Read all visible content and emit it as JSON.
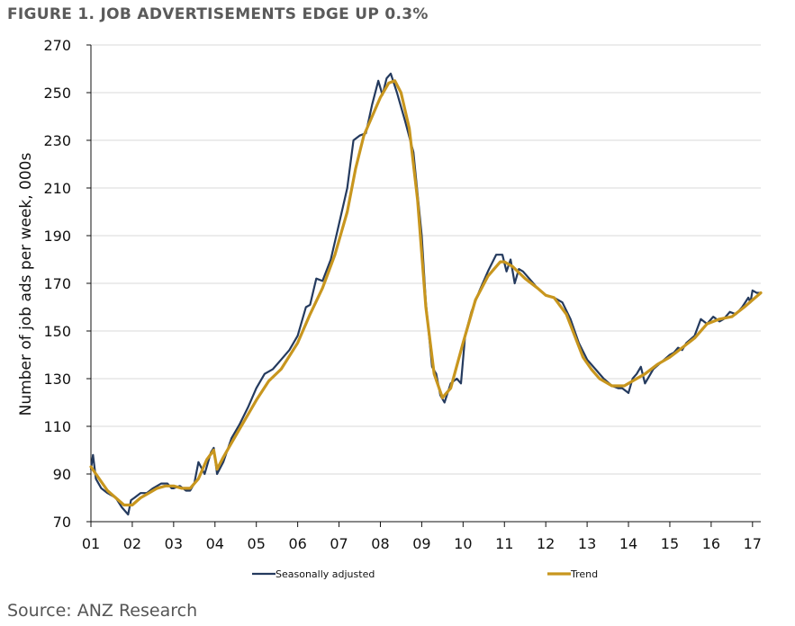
{
  "figure_title": "FIGURE 1. JOB ADVERTISEMENTS EDGE UP 0.3%",
  "source_text": "Source: ANZ Research",
  "colors": {
    "seasonally_adjusted": "#243a5e",
    "trend": "#c8961e",
    "grid": "#d9d9d9",
    "axis": "#111111"
  },
  "chart_data": {
    "type": "line",
    "title": "",
    "xlabel": "",
    "ylabel": "Number of job ads per week, 000s",
    "ylim": [
      70,
      270
    ],
    "yticks": [
      70,
      90,
      110,
      130,
      150,
      170,
      190,
      210,
      230,
      250,
      270
    ],
    "xlim": [
      2001.0,
      2017.2
    ],
    "xticks": [
      {
        "label": "01",
        "x": 2001
      },
      {
        "label": "02",
        "x": 2002
      },
      {
        "label": "03",
        "x": 2003
      },
      {
        "label": "04",
        "x": 2004
      },
      {
        "label": "05",
        "x": 2005
      },
      {
        "label": "06",
        "x": 2006
      },
      {
        "label": "07",
        "x": 2007
      },
      {
        "label": "08",
        "x": 2008
      },
      {
        "label": "09",
        "x": 2009
      },
      {
        "label": "10",
        "x": 2010
      },
      {
        "label": "11",
        "x": 2011
      },
      {
        "label": "12",
        "x": 2012
      },
      {
        "label": "13",
        "x": 2013
      },
      {
        "label": "14",
        "x": 2014
      },
      {
        "label": "15",
        "x": 2015
      },
      {
        "label": "16",
        "x": 2016
      },
      {
        "label": "17",
        "x": 2017
      }
    ],
    "grid": "horizontal",
    "legend_position": "bottom",
    "series": [
      {
        "name": "Seasonally adjusted",
        "x": [
          2001.0,
          2001.05,
          2001.12,
          2001.25,
          2001.4,
          2001.6,
          2001.75,
          2001.9,
          2001.97,
          2002.05,
          2002.2,
          2002.35,
          2002.5,
          2002.7,
          2002.85,
          2002.95,
          2003.0,
          2003.15,
          2003.3,
          2003.4,
          2003.5,
          2003.6,
          2003.75,
          2003.9,
          2003.97,
          2004.05,
          2004.2,
          2004.4,
          2004.6,
          2004.8,
          2005.0,
          2005.2,
          2005.4,
          2005.6,
          2005.8,
          2006.0,
          2006.2,
          2006.3,
          2006.45,
          2006.6,
          2006.8,
          2007.0,
          2007.2,
          2007.35,
          2007.5,
          2007.65,
          2007.8,
          2007.95,
          2008.05,
          2008.15,
          2008.25,
          2008.4,
          2008.6,
          2008.8,
          2009.0,
          2009.1,
          2009.25,
          2009.35,
          2009.45,
          2009.55,
          2009.7,
          2009.85,
          2009.95,
          2010.05,
          2010.2,
          2010.4,
          2010.6,
          2010.8,
          2010.95,
          2011.05,
          2011.15,
          2011.25,
          2011.35,
          2011.45,
          2011.6,
          2011.8,
          2012.0,
          2012.2,
          2012.4,
          2012.6,
          2012.8,
          2013.0,
          2013.2,
          2013.4,
          2013.6,
          2013.75,
          2013.85,
          2014.0,
          2014.1,
          2014.2,
          2014.3,
          2014.4,
          2014.6,
          2014.8,
          2015.0,
          2015.1,
          2015.2,
          2015.3,
          2015.4,
          2015.6,
          2015.75,
          2015.9,
          2016.05,
          2016.2,
          2016.3,
          2016.45,
          2016.6,
          2016.75,
          2016.9,
          2016.95,
          2017.0,
          2017.1,
          2017.2
        ],
        "y": [
          92,
          98,
          88,
          84,
          82,
          80,
          76,
          73,
          79,
          80,
          82,
          82,
          84,
          86,
          86,
          84,
          84,
          85,
          83,
          83,
          86,
          95,
          90,
          99,
          101,
          90,
          95,
          105,
          111,
          118,
          126,
          132,
          134,
          138,
          142,
          148,
          160,
          161,
          172,
          171,
          180,
          195,
          210,
          230,
          232,
          233,
          245,
          255,
          249,
          256,
          258,
          250,
          238,
          225,
          190,
          162,
          135,
          132,
          123,
          120,
          128,
          130,
          128,
          148,
          158,
          167,
          175,
          182,
          182,
          175,
          180,
          170,
          176,
          175,
          172,
          168,
          165,
          164,
          162,
          155,
          145,
          138,
          134,
          130,
          127,
          126,
          126,
          124,
          130,
          132,
          135,
          128,
          134,
          137,
          140,
          141,
          143,
          142,
          145,
          148,
          155,
          153,
          156,
          154,
          155,
          158,
          157,
          160,
          164,
          162,
          167,
          166,
          166
        ]
      },
      {
        "name": "Trend",
        "x": [
          2001.0,
          2001.2,
          2001.4,
          2001.6,
          2001.8,
          2002.0,
          2002.2,
          2002.4,
          2002.6,
          2002.8,
          2003.0,
          2003.2,
          2003.4,
          2003.6,
          2003.8,
          2003.97,
          2004.05,
          2004.2,
          2004.5,
          2004.8,
          2005.0,
          2005.3,
          2005.6,
          2006.0,
          2006.3,
          2006.6,
          2006.9,
          2007.2,
          2007.4,
          2007.6,
          2007.8,
          2008.0,
          2008.2,
          2008.35,
          2008.5,
          2008.7,
          2008.9,
          2009.1,
          2009.3,
          2009.5,
          2009.7,
          2010.0,
          2010.3,
          2010.6,
          2010.9,
          2011.0,
          2011.2,
          2011.5,
          2011.8,
          2012.0,
          2012.2,
          2012.5,
          2012.7,
          2012.9,
          2013.1,
          2013.3,
          2013.6,
          2013.9,
          2014.1,
          2014.4,
          2014.7,
          2015.0,
          2015.3,
          2015.6,
          2015.9,
          2016.2,
          2016.5,
          2016.8,
          2017.0,
          2017.2
        ],
        "y": [
          93,
          88,
          83,
          80,
          77,
          77,
          80,
          82,
          84,
          85,
          85,
          84,
          84,
          88,
          96,
          100,
          92,
          97,
          106,
          115,
          121,
          129,
          134,
          145,
          157,
          168,
          182,
          200,
          218,
          232,
          240,
          248,
          254,
          255,
          250,
          235,
          205,
          160,
          132,
          122,
          126,
          145,
          163,
          173,
          179,
          179,
          177,
          172,
          168,
          165,
          164,
          157,
          148,
          139,
          134,
          130,
          127,
          127,
          129,
          132,
          136,
          139,
          143,
          147,
          153,
          155,
          156,
          160,
          163,
          166
        ]
      }
    ]
  }
}
